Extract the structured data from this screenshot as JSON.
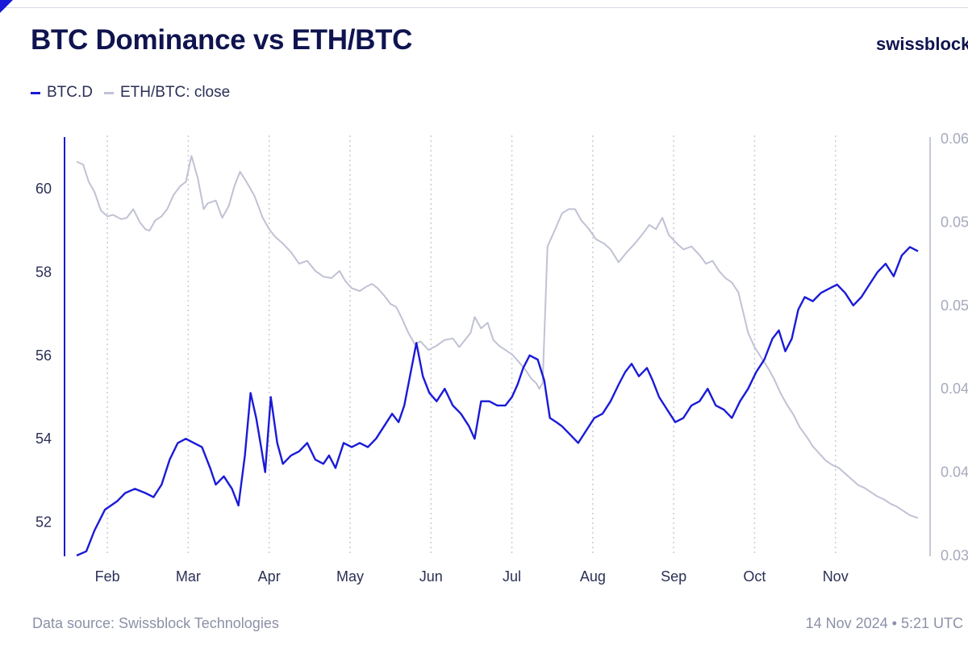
{
  "header": {
    "title": "BTC Dominance vs ETH/BTC",
    "brand": "swissblock"
  },
  "footer": {
    "source": "Data source: Swissblock Technologies",
    "timestamp": "14 Nov 2024 • 5:21 UTC"
  },
  "chart_data": {
    "type": "line",
    "title": "BTC Dominance vs ETH/BTC",
    "x_ticks": [
      "Feb",
      "Mar",
      "Apr",
      "May",
      "Jun",
      "Jul",
      "Aug",
      "Sep",
      "Oct",
      "Nov"
    ],
    "x_domain": [
      0,
      10.4
    ],
    "left_axis": {
      "ticks": [
        "52",
        "54",
        "56",
        "58",
        "60"
      ],
      "range": [
        51.2,
        61.2
      ]
    },
    "right_axis": {
      "ticks": [
        "0.03",
        "0.04",
        "0.04",
        "0.05",
        "0.05",
        "0.06"
      ],
      "range": [
        0.0305,
        0.0595
      ]
    },
    "grid": "vertical dotted at month boundaries",
    "legend": "top-left",
    "series": [
      {
        "name": "BTC.D",
        "color": "#1a1ad8",
        "axis": "left",
        "points": [
          [
            0,
            51.2
          ],
          [
            0.12,
            51.3
          ],
          [
            0.22,
            51.8
          ],
          [
            0.35,
            52.3
          ],
          [
            0.5,
            52.5
          ],
          [
            0.6,
            52.7
          ],
          [
            0.72,
            52.8
          ],
          [
            0.85,
            52.7
          ],
          [
            0.95,
            52.6
          ],
          [
            1.05,
            52.9
          ],
          [
            1.15,
            53.5
          ],
          [
            1.25,
            53.9
          ],
          [
            1.35,
            54.0
          ],
          [
            1.45,
            53.9
          ],
          [
            1.55,
            53.8
          ],
          [
            1.65,
            53.3
          ],
          [
            1.72,
            52.9
          ],
          [
            1.82,
            53.1
          ],
          [
            1.92,
            52.8
          ],
          [
            2.0,
            52.4
          ],
          [
            2.08,
            53.6
          ],
          [
            2.15,
            55.1
          ],
          [
            2.22,
            54.5
          ],
          [
            2.28,
            53.8
          ],
          [
            2.33,
            53.2
          ],
          [
            2.4,
            55.0
          ],
          [
            2.48,
            53.9
          ],
          [
            2.55,
            53.4
          ],
          [
            2.65,
            53.6
          ],
          [
            2.75,
            53.7
          ],
          [
            2.85,
            53.9
          ],
          [
            2.95,
            53.5
          ],
          [
            3.05,
            53.4
          ],
          [
            3.12,
            53.6
          ],
          [
            3.2,
            53.3
          ],
          [
            3.3,
            53.9
          ],
          [
            3.4,
            53.8
          ],
          [
            3.5,
            53.9
          ],
          [
            3.6,
            53.8
          ],
          [
            3.7,
            54.0
          ],
          [
            3.8,
            54.3
          ],
          [
            3.9,
            54.6
          ],
          [
            3.98,
            54.4
          ],
          [
            4.05,
            54.8
          ],
          [
            4.12,
            55.5
          ],
          [
            4.2,
            56.3
          ],
          [
            4.28,
            55.5
          ],
          [
            4.36,
            55.1
          ],
          [
            4.45,
            54.9
          ],
          [
            4.55,
            55.2
          ],
          [
            4.65,
            54.8
          ],
          [
            4.75,
            54.6
          ],
          [
            4.85,
            54.3
          ],
          [
            4.92,
            54.0
          ],
          [
            5.0,
            54.9
          ],
          [
            5.1,
            54.9
          ],
          [
            5.2,
            54.8
          ],
          [
            5.3,
            54.8
          ],
          [
            5.38,
            55.0
          ],
          [
            5.45,
            55.3
          ],
          [
            5.52,
            55.7
          ],
          [
            5.6,
            56.0
          ],
          [
            5.7,
            55.9
          ],
          [
            5.78,
            55.4
          ],
          [
            5.85,
            54.5
          ],
          [
            5.93,
            54.4
          ],
          [
            6.0,
            54.3
          ],
          [
            6.1,
            54.1
          ],
          [
            6.2,
            53.9
          ],
          [
            6.3,
            54.2
          ],
          [
            6.4,
            54.5
          ],
          [
            6.5,
            54.6
          ],
          [
            6.6,
            54.9
          ],
          [
            6.7,
            55.3
          ],
          [
            6.78,
            55.6
          ],
          [
            6.86,
            55.8
          ],
          [
            6.95,
            55.5
          ],
          [
            7.05,
            55.7
          ],
          [
            7.12,
            55.4
          ],
          [
            7.2,
            55.0
          ],
          [
            7.3,
            54.7
          ],
          [
            7.4,
            54.4
          ],
          [
            7.5,
            54.5
          ],
          [
            7.6,
            54.8
          ],
          [
            7.7,
            54.9
          ],
          [
            7.8,
            55.2
          ],
          [
            7.9,
            54.8
          ],
          [
            8.0,
            54.7
          ],
          [
            8.1,
            54.5
          ],
          [
            8.2,
            54.9
          ],
          [
            8.3,
            55.2
          ],
          [
            8.4,
            55.6
          ],
          [
            8.5,
            55.9
          ],
          [
            8.6,
            56.4
          ],
          [
            8.68,
            56.6
          ],
          [
            8.76,
            56.1
          ],
          [
            8.84,
            56.4
          ],
          [
            8.92,
            57.1
          ],
          [
            9.0,
            57.4
          ],
          [
            9.1,
            57.3
          ],
          [
            9.2,
            57.5
          ],
          [
            9.3,
            57.6
          ],
          [
            9.4,
            57.7
          ],
          [
            9.5,
            57.5
          ],
          [
            9.6,
            57.2
          ],
          [
            9.7,
            57.4
          ],
          [
            9.8,
            57.7
          ],
          [
            9.9,
            58.0
          ],
          [
            10.0,
            58.2
          ],
          [
            10.1,
            57.9
          ],
          [
            10.2,
            58.4
          ],
          [
            10.3,
            58.6
          ],
          [
            10.4,
            58.5
          ]
        ]
      },
      {
        "name": "ETH/BTC: close",
        "color": "#c0c2d4",
        "axis": "right",
        "points": [
          [
            0,
            0.0579
          ],
          [
            0.08,
            0.0577
          ],
          [
            0.15,
            0.0565
          ],
          [
            0.22,
            0.0558
          ],
          [
            0.3,
            0.0545
          ],
          [
            0.38,
            0.0541
          ],
          [
            0.45,
            0.0542
          ],
          [
            0.55,
            0.0539
          ],
          [
            0.62,
            0.054
          ],
          [
            0.7,
            0.0546
          ],
          [
            0.78,
            0.0537
          ],
          [
            0.85,
            0.0532
          ],
          [
            0.9,
            0.0531
          ],
          [
            0.97,
            0.0538
          ],
          [
            1.05,
            0.0541
          ],
          [
            1.12,
            0.0546
          ],
          [
            1.2,
            0.0556
          ],
          [
            1.28,
            0.0562
          ],
          [
            1.35,
            0.0565
          ],
          [
            1.42,
            0.0583
          ],
          [
            1.5,
            0.0567
          ],
          [
            1.57,
            0.0546
          ],
          [
            1.62,
            0.055
          ],
          [
            1.72,
            0.0552
          ],
          [
            1.8,
            0.054
          ],
          [
            1.88,
            0.0548
          ],
          [
            1.95,
            0.0562
          ],
          [
            2.02,
            0.0572
          ],
          [
            2.1,
            0.0565
          ],
          [
            2.2,
            0.0555
          ],
          [
            2.3,
            0.054
          ],
          [
            2.38,
            0.0532
          ],
          [
            2.45,
            0.0527
          ],
          [
            2.55,
            0.0522
          ],
          [
            2.65,
            0.0516
          ],
          [
            2.75,
            0.0508
          ],
          [
            2.85,
            0.051
          ],
          [
            2.95,
            0.0503
          ],
          [
            3.05,
            0.0499
          ],
          [
            3.15,
            0.0498
          ],
          [
            3.25,
            0.0503
          ],
          [
            3.32,
            0.0496
          ],
          [
            3.4,
            0.0491
          ],
          [
            3.5,
            0.0489
          ],
          [
            3.58,
            0.0492
          ],
          [
            3.65,
            0.0494
          ],
          [
            3.72,
            0.0491
          ],
          [
            3.8,
            0.0486
          ],
          [
            3.88,
            0.048
          ],
          [
            3.95,
            0.0478
          ],
          [
            4.02,
            0.047
          ],
          [
            4.1,
            0.046
          ],
          [
            4.18,
            0.0452
          ],
          [
            4.25,
            0.0454
          ],
          [
            4.35,
            0.0448
          ],
          [
            4.45,
            0.0451
          ],
          [
            4.55,
            0.0455
          ],
          [
            4.65,
            0.0456
          ],
          [
            4.73,
            0.045
          ],
          [
            4.8,
            0.0455
          ],
          [
            4.87,
            0.046
          ],
          [
            4.92,
            0.0471
          ],
          [
            5.0,
            0.0463
          ],
          [
            5.08,
            0.0467
          ],
          [
            5.15,
            0.0455
          ],
          [
            5.22,
            0.0451
          ],
          [
            5.3,
            0.0448
          ],
          [
            5.38,
            0.0445
          ],
          [
            5.46,
            0.044
          ],
          [
            5.55,
            0.0434
          ],
          [
            5.62,
            0.0428
          ],
          [
            5.68,
            0.0425
          ],
          [
            5.72,
            0.0421
          ],
          [
            5.76,
            0.0425
          ],
          [
            5.82,
            0.052
          ],
          [
            5.9,
            0.053
          ],
          [
            6.0,
            0.0543
          ],
          [
            6.08,
            0.0546
          ],
          [
            6.16,
            0.0546
          ],
          [
            6.24,
            0.0538
          ],
          [
            6.32,
            0.0533
          ],
          [
            6.42,
            0.0525
          ],
          [
            6.52,
            0.0522
          ],
          [
            6.6,
            0.0518
          ],
          [
            6.7,
            0.0509
          ],
          [
            6.8,
            0.0516
          ],
          [
            6.9,
            0.0522
          ],
          [
            7.0,
            0.0529
          ],
          [
            7.08,
            0.0535
          ],
          [
            7.16,
            0.0532
          ],
          [
            7.24,
            0.054
          ],
          [
            7.32,
            0.0528
          ],
          [
            7.42,
            0.0522
          ],
          [
            7.5,
            0.0518
          ],
          [
            7.6,
            0.052
          ],
          [
            7.7,
            0.0514
          ],
          [
            7.78,
            0.0508
          ],
          [
            7.86,
            0.051
          ],
          [
            7.94,
            0.0503
          ],
          [
            8.02,
            0.0498
          ],
          [
            8.1,
            0.0495
          ],
          [
            8.18,
            0.0488
          ],
          [
            8.24,
            0.0474
          ],
          [
            8.3,
            0.046
          ],
          [
            8.38,
            0.045
          ],
          [
            8.46,
            0.0443
          ],
          [
            8.55,
            0.0435
          ],
          [
            8.62,
            0.0428
          ],
          [
            8.7,
            0.0418
          ],
          [
            8.78,
            0.041
          ],
          [
            8.86,
            0.0403
          ],
          [
            8.94,
            0.0394
          ],
          [
            9.02,
            0.0388
          ],
          [
            9.1,
            0.0381
          ],
          [
            9.18,
            0.0376
          ],
          [
            9.26,
            0.0371
          ],
          [
            9.34,
            0.0368
          ],
          [
            9.42,
            0.0366
          ],
          [
            9.5,
            0.0362
          ],
          [
            9.58,
            0.0358
          ],
          [
            9.66,
            0.0354
          ],
          [
            9.74,
            0.0352
          ],
          [
            9.82,
            0.0349
          ],
          [
            9.9,
            0.0346
          ],
          [
            9.98,
            0.0344
          ],
          [
            10.06,
            0.0341
          ],
          [
            10.14,
            0.0339
          ],
          [
            10.22,
            0.0336
          ],
          [
            10.3,
            0.0333
          ],
          [
            10.4,
            0.0331
          ]
        ]
      }
    ]
  }
}
